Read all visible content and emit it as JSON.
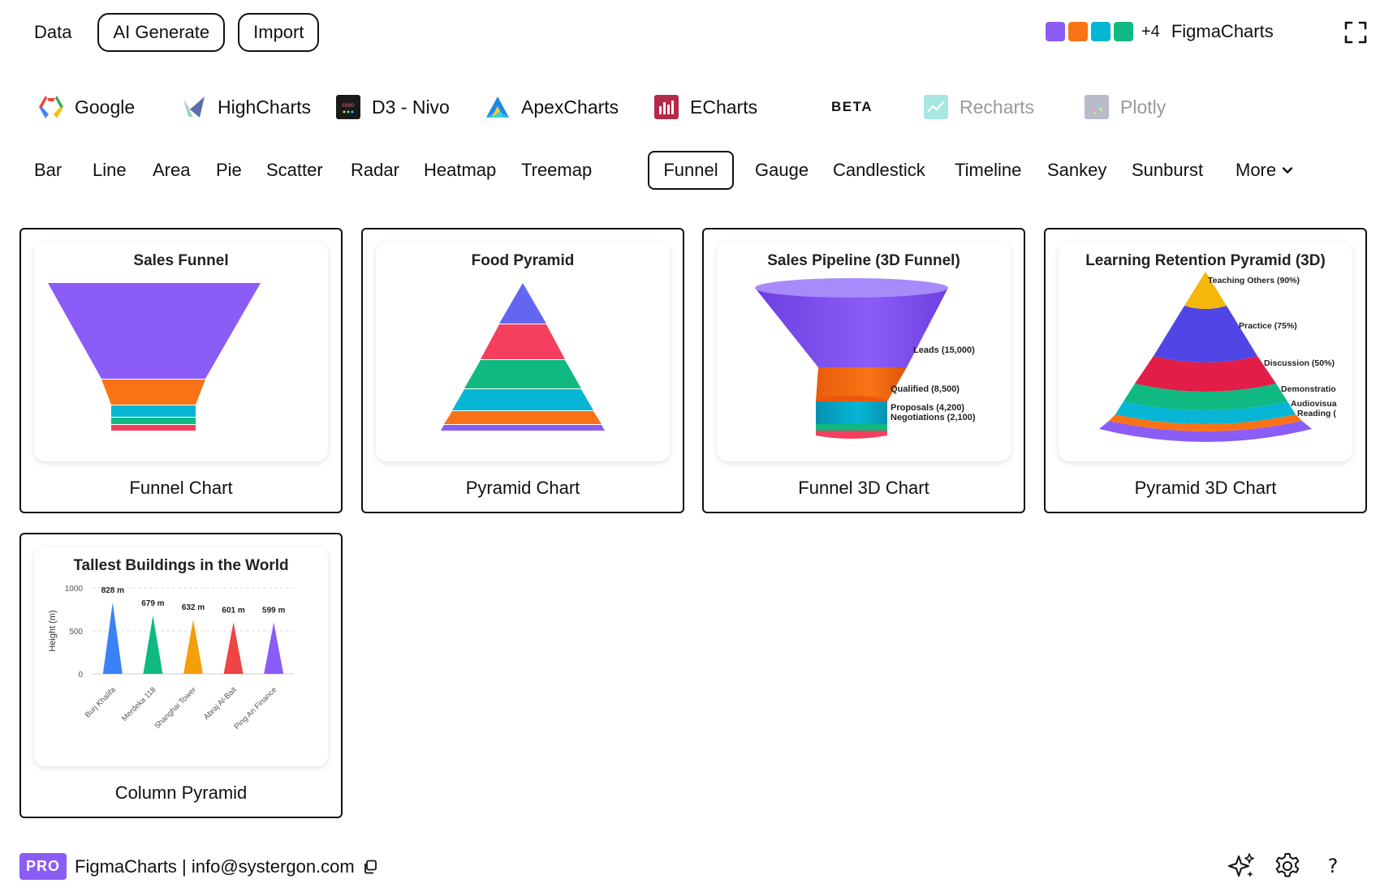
{
  "header": {
    "data_label": "Data",
    "ai_generate_label": "AI Generate",
    "import_label": "Import",
    "palette": [
      "#8b5cf6",
      "#f97316",
      "#06b6d4",
      "#10b981"
    ],
    "palette_more": "+4",
    "brand": "FigmaCharts"
  },
  "libraries": [
    {
      "label": "Google",
      "icon": "google-icon"
    },
    {
      "label": "HighCharts",
      "icon": "highcharts-icon"
    },
    {
      "label": "D3 - Nivo",
      "icon": "nivo-icon",
      "icon_text": "nivo"
    },
    {
      "label": "ApexCharts",
      "icon": "apexcharts-icon"
    },
    {
      "label": "ECharts",
      "icon": "echarts-icon",
      "badge": "BETA"
    },
    {
      "label": "Recharts",
      "icon": "recharts-icon",
      "disabled": true
    },
    {
      "label": "Plotly",
      "icon": "plotly-icon",
      "disabled": true
    }
  ],
  "tabs": [
    "Bar",
    "Line",
    "Area",
    "Pie",
    "Scatter",
    "Radar",
    "Heatmap",
    "Treemap",
    "Funnel",
    "Gauge",
    "Candlestick",
    "Timeline",
    "Sankey",
    "Sunburst"
  ],
  "active_tab": "Funnel",
  "more_label": "More",
  "cards": [
    {
      "label": "Funnel Chart",
      "preview_title": "Sales Funnel",
      "colors": [
        "#8b5cf6",
        "#f97316",
        "#06b6d4",
        "#10b981",
        "#f43f5e"
      ]
    },
    {
      "label": "Pyramid Chart",
      "preview_title": "Food Pyramid",
      "colors": [
        "#6366f1",
        "#f43f5e",
        "#10b981",
        "#06b6d4",
        "#f97316",
        "#8b5cf6"
      ]
    },
    {
      "label": "Funnel 3D Chart",
      "preview_title": "Sales Pipeline (3D Funnel)",
      "stage_labels": [
        "Leads (15,000)",
        "Qualified (8,500)",
        "Proposals (4,200)",
        "Negotiations (2,100)"
      ],
      "colors": [
        "#8b5cf6",
        "#f97316",
        "#06b6d4",
        "#10b981",
        "#f43f5e"
      ]
    },
    {
      "label": "Pyramid 3D Chart",
      "preview_title": "Learning Retention Pyramid (3D)",
      "stage_labels": [
        "Teaching Others (90%)",
        "Practice (75%)",
        "Discussion (50%)",
        "Demonstratio",
        "Audiovisua",
        "Reading ("
      ],
      "colors": [
        "#f5b70a",
        "#4f46e5",
        "#e11d48",
        "#10b981",
        "#06b6d4",
        "#f97316",
        "#8b5cf6"
      ]
    },
    {
      "label": "Column Pyramid",
      "preview_title": "Tallest Buildings in the World"
    }
  ],
  "chart_data": {
    "type": "bar",
    "title": "Tallest Buildings in the World",
    "xlabel": "",
    "ylabel": "Height (m)",
    "categories": [
      "Burj Khalifa",
      "Merdeka 118",
      "Shanghai Tower",
      "Abraj Al-Bait",
      "Ping An Finance"
    ],
    "values": [
      828,
      679,
      632,
      601,
      599
    ],
    "data_labels": [
      "828 m",
      "679 m",
      "632 m",
      "601 m",
      "599 m"
    ],
    "ylim": [
      0,
      1000
    ],
    "yticks": [
      0,
      500,
      1000
    ],
    "colors": [
      "#3b82f6",
      "#10b981",
      "#f59e0b",
      "#ef4444",
      "#8b5cf6"
    ],
    "grid": true
  },
  "footer": {
    "badge": "PRO",
    "text": "FigmaCharts | info@systergon.com"
  }
}
